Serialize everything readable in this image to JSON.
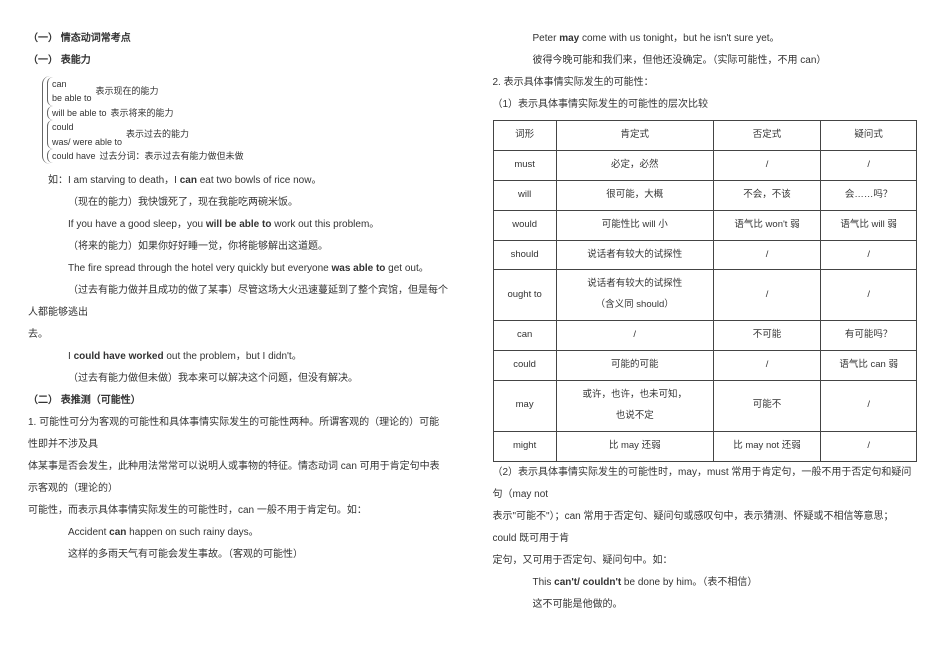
{
  "left": {
    "title1": "（一）  情态动词常考点",
    "title2": "（一）  表能力",
    "bracket": {
      "g1": {
        "a": "can",
        "b": "be able to",
        "label": "表示现在的能力"
      },
      "g2": {
        "a": "will be able to",
        "label": "表示将来的能力"
      },
      "g3": {
        "a": "could",
        "b": "was/ were able to",
        "label": "表示过去的能力"
      },
      "g4": {
        "a": "could have",
        "label": "过去分词：表示过去有能力做但未做"
      }
    },
    "p1a": "如：I am starving to death，I ",
    "p1b": "can",
    "p1c": " eat two bowls of rice now。",
    "p2": "（现在的能力）我快饿死了，现在我能吃两碗米饭。",
    "p3a": "If you have a good sleep，you ",
    "p3b": "will be able to",
    "p3c": " work out this problem。",
    "p4": "（将来的能力）如果你好好睡一觉，你将能够解出这道题。",
    "p5a": "The fire spread through the hotel very quickly but everyone ",
    "p5b": "was able to",
    "p5c": " get out。",
    "p6": "（过去有能力做并且成功的做了某事）尽管这场大火迅速蔓延到了整个宾馆，但是每个人都能够逃出",
    "p6b": "去。",
    "p7a": "I ",
    "p7b": "could have worked",
    "p7c": " out the problem，but I didn't。",
    "p8": "（过去有能力做但未做）我本来可以解决这个问题，但没有解决。",
    "title3": "（二）  表推测（可能性）",
    "p9": "1.  可能性可分为客观的可能性和具体事情实际发生的可能性两种。所谓客观的（理论的）可能性即并不涉及具",
    "p10": "体某事是否会发生，此种用法常常可以说明人或事物的特征。情态动词 can 可用于肯定句中表示客观的（理论的）",
    "p11": "可能性，而表示具体事情实际发生的可能性时，can 一般不用于肯定句。如：",
    "p12a": "Accident ",
    "p12b": "can",
    "p12c": " happen on such rainy days。",
    "p13": "这样的多雨天气有可能会发生事故。（客观的可能性）"
  },
  "right": {
    "r1a": "Peter ",
    "r1b": "may",
    "r1c": " come with us tonight，but he isn't sure yet。",
    "r2": "彼得今晚可能和我们来，但他还没确定。（实际可能性，不用 can）",
    "r3": "2.  表示具体事情实际发生的可能性：",
    "r4": "（1）表示具体事情实际发生的可能性的层次比较",
    "table": {
      "head": [
        "词形",
        "肯定式",
        "否定式",
        "疑问式"
      ],
      "rows": [
        [
          "must",
          "必定，必然",
          "/",
          "/"
        ],
        [
          "will",
          "很可能，大概",
          "不会，不该",
          "会……吗？"
        ],
        [
          "would",
          "可能性比 will 小",
          "语气比 won't 弱",
          "语气比 will 弱"
        ],
        [
          "should",
          "说话者有较大的试探性",
          "/",
          "/"
        ],
        [
          "ought to",
          "说话者有较大的试探性\n（含义同 should）",
          "/",
          "/"
        ],
        [
          "can",
          "/",
          "不可能",
          "有可能吗？"
        ],
        [
          "could",
          "可能的可能",
          "/",
          "语气比 can 弱"
        ],
        [
          "may",
          "或许，也许，也未可知，\n也说不定",
          "可能不",
          "/"
        ],
        [
          "might",
          "比 may 还弱",
          "比 may not 还弱",
          "/"
        ]
      ]
    },
    "r5": "（2）表示具体事情实际发生的可能性时，may，must 常用于肯定句，一般不用于否定句和疑问句（may not",
    "r6": "表示\"可能不\"）；can 常用于否定句、疑问句或感叹句中，表示猜测、怀疑或不相信等意思；could 既可用于肯",
    "r7": "定句，又可用于否定句、疑问句中。如：",
    "r8a": "This ",
    "r8b": "can't/ couldn't",
    "r8c": " be done by him。（表不相信）",
    "r9": "这不可能是他做的。"
  },
  "colors": {
    "text": "#333333",
    "border": "#444444",
    "background": "#ffffff"
  }
}
